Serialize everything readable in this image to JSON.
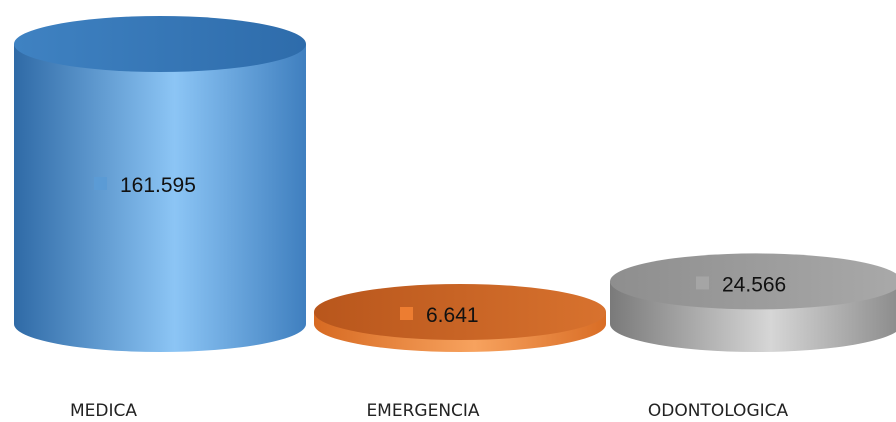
{
  "chart_data": {
    "type": "bar",
    "style": "3d-cylinder",
    "categories": [
      "MEDICA",
      "EMERGENCIA",
      "ODONTOLOGICA"
    ],
    "values": [
      161595,
      6641,
      24566
    ],
    "data_labels": [
      "161.595",
      "6.641",
      "24.566"
    ],
    "colors": [
      "#5b9bd5",
      "#ed7d31",
      "#a5a5a5"
    ],
    "title": "",
    "xlabel": "",
    "ylabel": "",
    "ylim": [
      0,
      161595
    ],
    "grid": false,
    "legend": "none"
  }
}
